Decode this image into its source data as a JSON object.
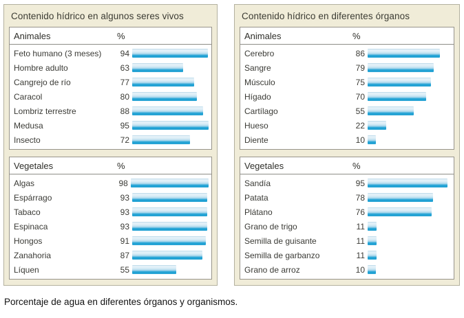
{
  "page": {
    "caption": "Porcentaje de agua en diferentes órganos y organismos."
  },
  "colors": {
    "panel_background": "#f0ecd8",
    "panel_border": "#b3b09e",
    "box_border": "#97948a",
    "bar_cyan": "#28a6d7",
    "bar_highlight": "#e6f2f9",
    "text": "#3a3a35"
  },
  "panels": [
    {
      "title": "Contenido hídrico en algunos seres vivos"
    },
    {
      "title": "Contenido hídrico en diferentes órganos"
    }
  ],
  "chart_data": [
    {
      "type": "bar",
      "orientation": "horizontal",
      "panel": "Contenido hídrico en algunos seres vivos",
      "group": "Animales",
      "unit": "%",
      "xlim": [
        0,
        100
      ],
      "categories": [
        "Feto humano (3 meses)",
        "Hombre adulto",
        "Cangrejo de río",
        "Caracol",
        "Lombriz terrestre",
        "Medusa",
        "Insecto"
      ],
      "values": [
        94,
        63,
        77,
        80,
        88,
        95,
        72
      ]
    },
    {
      "type": "bar",
      "orientation": "horizontal",
      "panel": "Contenido hídrico en algunos seres vivos",
      "group": "Vegetales",
      "unit": "%",
      "xlim": [
        0,
        100
      ],
      "categories": [
        "Algas",
        "Espárrago",
        "Tabaco",
        "Espinaca",
        "Hongos",
        "Zanahoria",
        "Líquen"
      ],
      "values": [
        98,
        93,
        93,
        93,
        91,
        87,
        55
      ]
    },
    {
      "type": "bar",
      "orientation": "horizontal",
      "panel": "Contenido hídrico en diferentes órganos",
      "group": "Animales",
      "unit": "%",
      "xlim": [
        0,
        100
      ],
      "categories": [
        "Cerebro",
        "Sangre",
        "Músculo",
        "Hígado",
        "Cartílago",
        "Hueso",
        "Diente"
      ],
      "values": [
        86,
        79,
        75,
        70,
        55,
        22,
        10
      ]
    },
    {
      "type": "bar",
      "orientation": "horizontal",
      "panel": "Contenido hídrico en diferentes órganos",
      "group": "Vegetales",
      "unit": "%",
      "xlim": [
        0,
        100
      ],
      "categories": [
        "Sandía",
        "Patata",
        "Plátano",
        "Grano de trigo",
        "Semilla de guisante",
        "Semilla de garbanzo",
        "Grano de arroz"
      ],
      "values": [
        95,
        78,
        76,
        11,
        11,
        11,
        10
      ]
    }
  ]
}
